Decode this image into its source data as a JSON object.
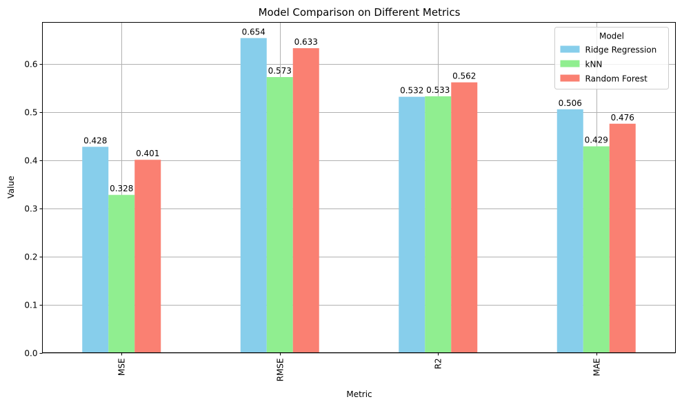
{
  "chart_data": {
    "type": "bar",
    "title": "Model Comparison on Different Metrics",
    "xlabel": "Metric",
    "ylabel": "Value",
    "categories": [
      "MSE",
      "RMSE",
      "R2",
      "MAE"
    ],
    "ylim": [
      0,
      0.6867
    ],
    "yticks": [
      0.0,
      0.1,
      0.2,
      0.3,
      0.4,
      0.5,
      0.6
    ],
    "ytick_labels": [
      "0.0",
      "0.1",
      "0.2",
      "0.3",
      "0.4",
      "0.5",
      "0.6"
    ],
    "grid": true,
    "legend": {
      "title": "Model",
      "position": "top-right"
    },
    "series": [
      {
        "name": "Ridge Regression",
        "color": "#87ceeb",
        "values": [
          0.428,
          0.654,
          0.532,
          0.506
        ],
        "labels": [
          "0.428",
          "0.654",
          "0.532",
          "0.506"
        ]
      },
      {
        "name": "kNN",
        "color": "#90ee90",
        "values": [
          0.328,
          0.573,
          0.533,
          0.429
        ],
        "labels": [
          "0.328",
          "0.573",
          "0.533",
          "0.429"
        ]
      },
      {
        "name": "Random Forest",
        "color": "#fa8072",
        "values": [
          0.401,
          0.633,
          0.562,
          0.476
        ],
        "labels": [
          "0.401",
          "0.633",
          "0.562",
          "0.476"
        ]
      }
    ]
  }
}
